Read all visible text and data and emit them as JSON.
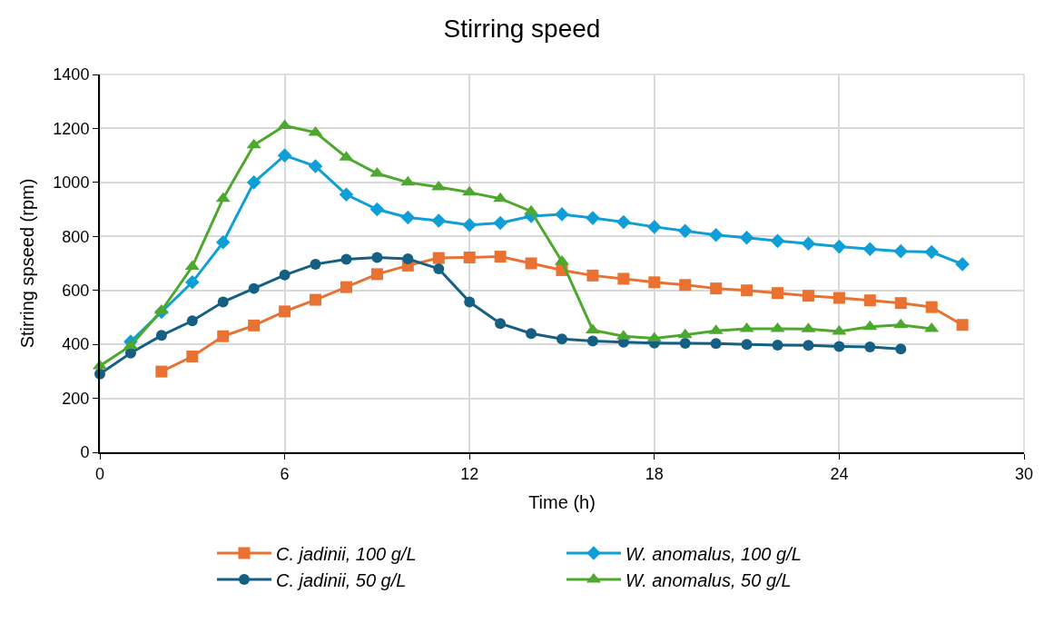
{
  "chart_data": {
    "type": "line",
    "title": "Stirring speed",
    "xlabel": "Time (h)",
    "ylabel": "Stirring spseed (rpm)",
    "xlim": [
      0,
      30
    ],
    "xticks": [
      0,
      6,
      12,
      18,
      24,
      30
    ],
    "ylim": [
      0,
      1400
    ],
    "yticks": [
      0,
      200,
      400,
      600,
      800,
      1000,
      1200,
      1400
    ],
    "grid": true,
    "legend": "bottom",
    "line_style": "solid",
    "series": [
      {
        "name": "C. jadinii, 100 g/L",
        "color": "#e97132",
        "marker": "square",
        "x": [
          2,
          3,
          4,
          5,
          6,
          7,
          8,
          9,
          10,
          11,
          12,
          13,
          14,
          15,
          16,
          17,
          18,
          19,
          20,
          21,
          22,
          23,
          24,
          25,
          26,
          27,
          28
        ],
        "values": [
          299,
          355,
          430,
          470,
          522,
          565,
          612,
          660,
          692,
          720,
          722,
          725,
          700,
          675,
          655,
          643,
          630,
          620,
          607,
          600,
          590,
          580,
          572,
          563,
          553,
          538,
          472
        ]
      },
      {
        "name": "W. anomalus, 100 g/L",
        "color": "#0f9ed5",
        "marker": "diamond",
        "x": [
          1,
          2,
          3,
          4,
          5,
          6,
          7,
          8,
          9,
          10,
          11,
          12,
          13,
          14,
          15,
          16,
          17,
          18,
          19,
          20,
          21,
          22,
          23,
          24,
          25,
          26,
          27,
          28
        ],
        "values": [
          410,
          520,
          630,
          778,
          1000,
          1100,
          1060,
          955,
          900,
          870,
          858,
          842,
          850,
          875,
          882,
          868,
          853,
          835,
          820,
          805,
          795,
          783,
          773,
          762,
          753,
          745,
          742,
          697
        ]
      },
      {
        "name": "C. jadinii, 50 g/L",
        "color": "#156082",
        "marker": "circle",
        "x": [
          0,
          1,
          2,
          3,
          4,
          5,
          6,
          7,
          8,
          9,
          10,
          11,
          12,
          13,
          14,
          15,
          16,
          17,
          18,
          19,
          20,
          21,
          22,
          23,
          24,
          25,
          26
        ],
        "values": [
          290,
          368,
          433,
          487,
          557,
          607,
          657,
          697,
          715,
          722,
          717,
          680,
          557,
          477,
          440,
          420,
          412,
          408,
          405,
          404,
          403,
          400,
          397,
          396,
          392,
          390,
          383
        ]
      },
      {
        "name": "W. anomalus, 50 g/L",
        "color": "#4ea72e",
        "marker": "triangle",
        "x": [
          0,
          1,
          2,
          3,
          4,
          5,
          6,
          7,
          8,
          9,
          10,
          11,
          12,
          13,
          14,
          15,
          16,
          17,
          18,
          19,
          20,
          21,
          22,
          23,
          24,
          25,
          26,
          27
        ],
        "values": [
          320,
          395,
          525,
          688,
          940,
          1138,
          1210,
          1185,
          1093,
          1033,
          1000,
          983,
          963,
          940,
          893,
          707,
          453,
          430,
          422,
          435,
          450,
          458,
          458,
          457,
          448,
          465,
          472,
          458
        ]
      }
    ]
  }
}
